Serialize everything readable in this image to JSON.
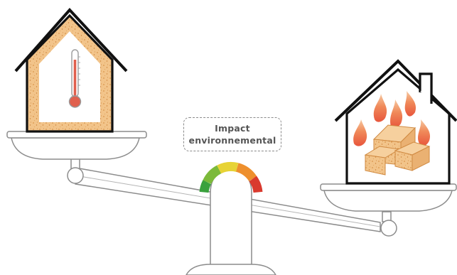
{
  "label": {
    "line1": "Impact",
    "line2": "environnemental"
  },
  "colors": {
    "outline": "#111111",
    "scale_stroke": "#8c8c8c",
    "insulation": "#f2c48a",
    "insulation_speck": "#d9954a",
    "thermometer": "#e0604e",
    "flame_outer": "#e8553c",
    "flame_inner": "#f3c591",
    "gauge_green": "#3aa13d",
    "gauge_yellow": "#e7d335",
    "gauge_orange": "#ee8f2d",
    "gauge_red": "#d93a2e"
  },
  "icons": {
    "left_house": "insulated-house-icon",
    "thermometer": "thermometer-icon",
    "right_house": "burning-house-icon",
    "balance": "balance-scale-icon",
    "gauge": "impact-gauge-icon"
  }
}
